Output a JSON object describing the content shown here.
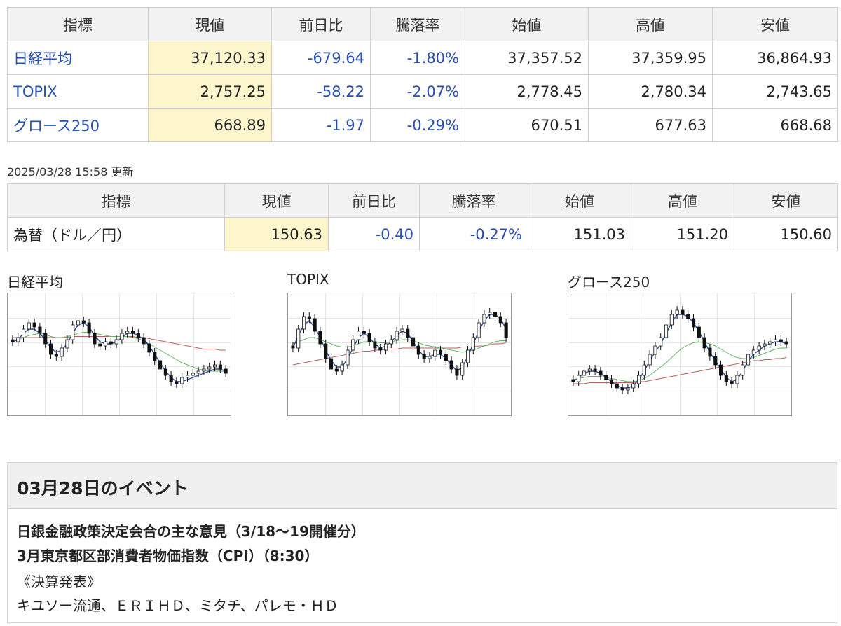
{
  "index_table": {
    "headers": [
      "指標",
      "現値",
      "前日比",
      "騰落率",
      "始値",
      "高値",
      "安値"
    ],
    "rows": [
      {
        "name": "日経平均",
        "current": "37,120.33",
        "change": "-679.64",
        "rate": "-1.80%",
        "open": "37,357.52",
        "high": "37,359.95",
        "low": "36,864.93"
      },
      {
        "name": "TOPIX",
        "current": "2,757.25",
        "change": "-58.22",
        "rate": "-2.07%",
        "open": "2,778.45",
        "high": "2,780.34",
        "low": "2,743.65"
      },
      {
        "name": "グロース250",
        "current": "668.89",
        "change": "-1.97",
        "rate": "-0.29%",
        "open": "670.51",
        "high": "677.63",
        "low": "668.68"
      }
    ]
  },
  "updated_at": "2025/03/28 15:58 更新",
  "fx_table": {
    "headers": [
      "指標",
      "現値",
      "前日比",
      "騰落率",
      "始値",
      "高値",
      "安値"
    ],
    "rows": [
      {
        "name": "為替（ドル／円）",
        "current": "150.63",
        "change": "-0.40",
        "rate": "-0.27%",
        "open": "151.03",
        "high": "151.20",
        "low": "150.60"
      }
    ]
  },
  "colors": {
    "negative": "#2a4db5",
    "link": "#2451b8",
    "current_bg": "#fdf6cd",
    "ma_short": "#2b4a9c",
    "ma_mid": "#66b566",
    "ma_long": "#b86060"
  },
  "charts": {
    "nikkei": {
      "title": "日経平均"
    },
    "topix": {
      "title": "TOPIX"
    },
    "growth": {
      "title": "グロース250"
    }
  },
  "chart_data": [
    {
      "type": "candlestick",
      "series_for": "日経平均",
      "ylim": [
        0,
        100
      ],
      "close": [
        62,
        66,
        74,
        80,
        76,
        70,
        60,
        50,
        48,
        56,
        64,
        78,
        82,
        80,
        70,
        60,
        58,
        62,
        60,
        64,
        70,
        72,
        70,
        66,
        60,
        52,
        44,
        36,
        30,
        24,
        22,
        28,
        30,
        32,
        34,
        36,
        38,
        40,
        36,
        32
      ],
      "ma_short": [
        62,
        64,
        70,
        74,
        74,
        70,
        64,
        56,
        52,
        54,
        60,
        70,
        78,
        80,
        76,
        68,
        62,
        60,
        60,
        62,
        66,
        70,
        70,
        68,
        64,
        58,
        50,
        42,
        34,
        28,
        24,
        24,
        26,
        28,
        30,
        32,
        34,
        36,
        36,
        34
      ],
      "ma_mid": [
        62,
        64,
        66,
        68,
        69,
        70,
        69,
        67,
        66,
        66,
        67,
        68,
        70,
        71,
        71,
        70,
        69,
        68,
        67,
        67,
        67,
        67,
        66,
        65,
        63,
        60,
        57,
        54,
        51,
        48,
        45,
        42,
        40,
        38,
        36,
        35,
        34,
        34,
        34,
        34
      ],
      "ma_long": [
        66,
        66,
        66,
        66,
        66,
        66,
        66,
        66,
        66,
        66,
        66,
        67,
        67,
        67,
        67,
        67,
        67,
        67,
        67,
        67,
        67,
        67,
        67,
        66,
        66,
        65,
        64,
        63,
        62,
        61,
        60,
        59,
        58,
        57,
        56,
        55,
        55,
        55,
        54,
        54
      ]
    },
    {
      "type": "candlestick",
      "series_for": "TOPIX",
      "ylim": [
        0,
        100
      ],
      "close": [
        56,
        74,
        86,
        84,
        72,
        60,
        46,
        36,
        34,
        40,
        54,
        64,
        72,
        70,
        62,
        56,
        54,
        60,
        64,
        72,
        74,
        66,
        58,
        50,
        46,
        48,
        54,
        50,
        44,
        36,
        30,
        42,
        54,
        66,
        80,
        88,
        90,
        86,
        80,
        66
      ],
      "ma_short": [
        56,
        68,
        78,
        82,
        76,
        66,
        54,
        44,
        38,
        38,
        46,
        56,
        66,
        70,
        66,
        60,
        56,
        58,
        62,
        68,
        72,
        70,
        62,
        54,
        48,
        48,
        50,
        50,
        46,
        40,
        34,
        38,
        48,
        60,
        72,
        82,
        88,
        88,
        84,
        74
      ],
      "ma_mid": [
        60,
        62,
        64,
        66,
        66,
        64,
        62,
        60,
        58,
        57,
        57,
        58,
        60,
        62,
        62,
        62,
        61,
        61,
        62,
        63,
        64,
        64,
        63,
        61,
        59,
        58,
        57,
        56,
        55,
        54,
        53,
        52,
        53,
        54,
        56,
        58,
        60,
        62,
        63,
        63
      ],
      "ma_long": [
        40,
        41,
        42,
        43,
        44,
        45,
        46,
        47,
        48,
        49,
        50,
        51,
        52,
        53,
        53,
        54,
        54,
        55,
        55,
        55,
        56,
        56,
        56,
        56,
        56,
        56,
        56,
        56,
        56,
        56,
        56,
        57,
        57,
        57,
        58,
        58,
        59,
        60,
        60,
        61
      ]
    },
    {
      "type": "candlestick",
      "series_for": "グロース250",
      "ylim": [
        0,
        100
      ],
      "close": [
        24,
        30,
        34,
        36,
        34,
        30,
        26,
        22,
        18,
        16,
        18,
        22,
        30,
        40,
        50,
        58,
        66,
        78,
        88,
        92,
        88,
        84,
        76,
        66,
        56,
        48,
        40,
        30,
        24,
        22,
        30,
        40,
        50,
        54,
        58,
        60,
        62,
        64,
        62,
        60
      ],
      "ma_short": [
        24,
        28,
        32,
        34,
        34,
        32,
        28,
        24,
        20,
        18,
        18,
        20,
        26,
        34,
        44,
        52,
        60,
        70,
        80,
        88,
        88,
        86,
        80,
        72,
        62,
        52,
        44,
        36,
        28,
        24,
        26,
        34,
        44,
        50,
        54,
        58,
        60,
        62,
        62,
        60
      ],
      "ma_mid": [
        26,
        27,
        28,
        29,
        29,
        29,
        28,
        27,
        26,
        25,
        24,
        24,
        25,
        27,
        30,
        34,
        38,
        42,
        47,
        52,
        56,
        59,
        61,
        62,
        61,
        60,
        58,
        55,
        52,
        49,
        47,
        46,
        46,
        47,
        49,
        51,
        53,
        55,
        56,
        56
      ],
      "ma_long": [
        22,
        22,
        22,
        23,
        23,
        23,
        23,
        23,
        23,
        23,
        23,
        23,
        24,
        24,
        25,
        26,
        27,
        28,
        29,
        30,
        31,
        32,
        33,
        34,
        35,
        36,
        37,
        38,
        39,
        40,
        41,
        42,
        43,
        44,
        44,
        45,
        45,
        46,
        46,
        47
      ]
    }
  ],
  "event": {
    "title": "03月28日のイベント",
    "lines": [
      "日銀金融政策決定会合の主な意見（3/18～19開催分）",
      "3月東京都区部消費者物価指数（CPI）（8:30）",
      "《決算発表》",
      "キユソー流通、ＥＲＩＨＤ、ミタチ、パレモ・ＨＤ"
    ]
  }
}
